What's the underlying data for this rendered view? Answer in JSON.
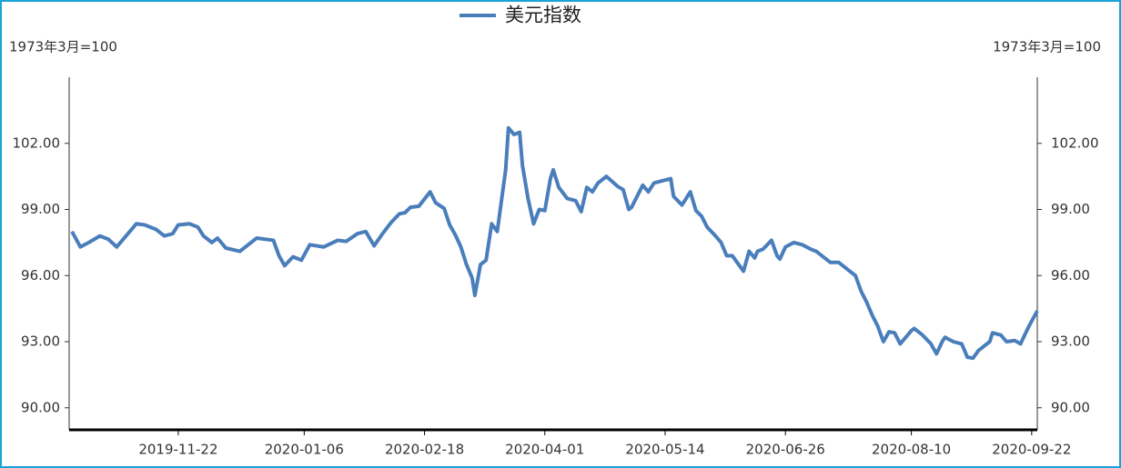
{
  "chart_data": {
    "type": "line",
    "y_label": "1973年3月=100",
    "y2_label": "1973年3月=100",
    "x": [
      "2019-10-15",
      "2019-10-18",
      "2019-10-21",
      "2019-10-25",
      "2019-10-28",
      "2019-10-31",
      "2019-11-04",
      "2019-11-07",
      "2019-11-10",
      "2019-11-14",
      "2019-11-17",
      "2019-11-20",
      "2019-11-22",
      "2019-11-26",
      "2019-11-29",
      "2019-12-01",
      "2019-12-04",
      "2019-12-06",
      "2019-12-09",
      "2019-12-14",
      "2019-12-17",
      "2019-12-20",
      "2019-12-26",
      "2019-12-28",
      "2019-12-30",
      "2020-01-02",
      "2020-01-05",
      "2020-01-08",
      "2020-01-13",
      "2020-01-18",
      "2020-01-21",
      "2020-01-25",
      "2020-01-28",
      "2020-01-31",
      "2020-02-03",
      "2020-02-06",
      "2020-02-09",
      "2020-02-11",
      "2020-02-13",
      "2020-02-16",
      "2020-02-20",
      "2020-02-22",
      "2020-02-25",
      "2020-02-27",
      "2020-02-29",
      "2020-03-02",
      "2020-03-04",
      "2020-03-06",
      "2020-03-07",
      "2020-03-09",
      "2020-03-11",
      "2020-03-13",
      "2020-03-15",
      "2020-03-18",
      "2020-03-19",
      "2020-03-21",
      "2020-03-23",
      "2020-03-24",
      "2020-03-26",
      "2020-03-28",
      "2020-03-30",
      "2020-04-01",
      "2020-04-03",
      "2020-04-04",
      "2020-04-06",
      "2020-04-09",
      "2020-04-12",
      "2020-04-14",
      "2020-04-16",
      "2020-04-18",
      "2020-04-20",
      "2020-04-23",
      "2020-04-27",
      "2020-04-29",
      "2020-05-01",
      "2020-05-02",
      "2020-05-06",
      "2020-05-08",
      "2020-05-10",
      "2020-05-13",
      "2020-05-16",
      "2020-05-17",
      "2020-05-20",
      "2020-05-23",
      "2020-05-25",
      "2020-05-27",
      "2020-05-29",
      "2020-06-01",
      "2020-06-03",
      "2020-06-05",
      "2020-06-07",
      "2020-06-11",
      "2020-06-13",
      "2020-06-15",
      "2020-06-16",
      "2020-06-18",
      "2020-06-21",
      "2020-06-23",
      "2020-06-24",
      "2020-06-26",
      "2020-06-29",
      "2020-07-02",
      "2020-07-05",
      "2020-07-07",
      "2020-07-10",
      "2020-07-12",
      "2020-07-15",
      "2020-07-19",
      "2020-07-21",
      "2020-07-23",
      "2020-07-25",
      "2020-07-27",
      "2020-07-29",
      "2020-07-31",
      "2020-08-02",
      "2020-08-04",
      "2020-08-06",
      "2020-08-10",
      "2020-08-11",
      "2020-08-14",
      "2020-08-17",
      "2020-08-19",
      "2020-08-21",
      "2020-08-22",
      "2020-08-25",
      "2020-08-28",
      "2020-08-30",
      "2020-09-01",
      "2020-09-03",
      "2020-09-05",
      "2020-09-07",
      "2020-09-08",
      "2020-09-11",
      "2020-09-13",
      "2020-09-16",
      "2020-09-18",
      "2020-09-21",
      "2020-09-24"
    ],
    "series": [
      {
        "name": "美元指数",
        "color": "#4a7ebb",
        "values": [
          98.0,
          97.3,
          97.5,
          97.8,
          97.65,
          97.3,
          97.9,
          98.35,
          98.3,
          98.1,
          97.8,
          97.9,
          98.3,
          98.35,
          98.2,
          97.8,
          97.5,
          97.7,
          97.25,
          97.1,
          97.4,
          97.7,
          97.6,
          96.9,
          96.45,
          96.85,
          96.7,
          97.4,
          97.3,
          97.6,
          97.55,
          97.9,
          98.0,
          97.35,
          97.9,
          98.4,
          98.8,
          98.85,
          99.1,
          99.15,
          99.8,
          99.3,
          99.05,
          98.3,
          97.85,
          97.3,
          96.5,
          95.9,
          95.1,
          96.5,
          96.7,
          98.35,
          98.0,
          100.8,
          102.7,
          102.4,
          102.5,
          101.0,
          99.5,
          98.35,
          99.0,
          98.95,
          100.4,
          100.8,
          100.0,
          99.5,
          99.4,
          98.9,
          100.0,
          99.8,
          100.2,
          100.5,
          100.05,
          99.9,
          99.0,
          99.1,
          100.1,
          99.8,
          100.2,
          100.3,
          100.4,
          99.6,
          99.2,
          99.8,
          98.95,
          98.7,
          98.2,
          97.8,
          97.5,
          96.9,
          96.9,
          96.2,
          97.1,
          96.8,
          97.1,
          97.2,
          97.6,
          96.9,
          96.75,
          97.3,
          97.5,
          97.4,
          97.2,
          97.1,
          96.8,
          96.6,
          96.6,
          96.2,
          96.0,
          95.3,
          94.8,
          94.2,
          93.7,
          93.0,
          93.45,
          93.4,
          92.9,
          93.5,
          93.6,
          93.3,
          92.9,
          92.45,
          93.0,
          93.2,
          93.0,
          92.9,
          92.3,
          92.25,
          92.6,
          92.8,
          93.0,
          93.4,
          93.3,
          93.0,
          93.05,
          92.9,
          93.7,
          94.4
        ]
      }
    ],
    "xlim": [
      "2019-10-14",
      "2020-09-24"
    ],
    "xticks": [
      "2019-11-22",
      "2020-01-06",
      "2020-02-18",
      "2020-04-01",
      "2020-05-14",
      "2020-06-26",
      "2020-08-10",
      "2020-09-22"
    ],
    "ylim": [
      89,
      105
    ],
    "yticks": [
      {
        "value": 90,
        "label": "90.00"
      },
      {
        "value": 93,
        "label": "93.00"
      },
      {
        "value": 96,
        "label": "96.00"
      },
      {
        "value": 99,
        "label": "99.00"
      },
      {
        "value": 102,
        "label": "102.00"
      }
    ],
    "y2lim": [
      89,
      105
    ],
    "y2ticks": [
      {
        "value": 90,
        "label": "90.00"
      },
      {
        "value": 93,
        "label": "93.00"
      },
      {
        "value": 96,
        "label": "96.00"
      },
      {
        "value": 99,
        "label": "99.00"
      },
      {
        "value": 102,
        "label": "102.00"
      }
    ],
    "legend": "top"
  }
}
